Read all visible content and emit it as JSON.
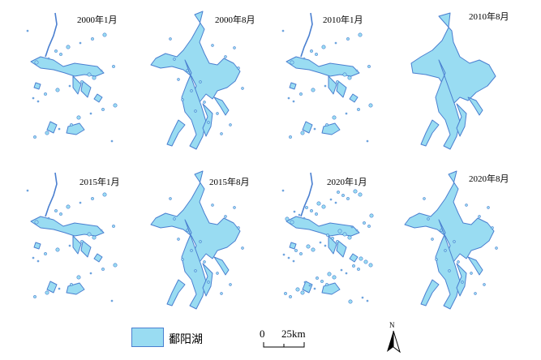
{
  "panels": [
    {
      "id": "2000-01",
      "label": "2000年1月",
      "variant": "dry"
    },
    {
      "id": "2000-08",
      "label": "2000年8月",
      "variant": "flood"
    },
    {
      "id": "2010-01",
      "label": "2010年1月",
      "variant": "dry"
    },
    {
      "id": "2010-08",
      "label": "2010年8月",
      "variant": "flood-smooth"
    },
    {
      "id": "2015-01",
      "label": "2015年1月",
      "variant": "dry"
    },
    {
      "id": "2015-08",
      "label": "2015年8月",
      "variant": "flood"
    },
    {
      "id": "2020-01",
      "label": "2020年1月",
      "variant": "dry-fragmented"
    },
    {
      "id": "2020-08",
      "label": "2020年8月",
      "variant": "flood"
    }
  ],
  "legend": {
    "label": "鄱阳湖",
    "fill_color": "#99dcf2",
    "edge_color": "#4a7fd0"
  },
  "scalebar": {
    "zero": "0",
    "distance": "25km"
  },
  "north_arrow": {
    "letter": "N"
  }
}
